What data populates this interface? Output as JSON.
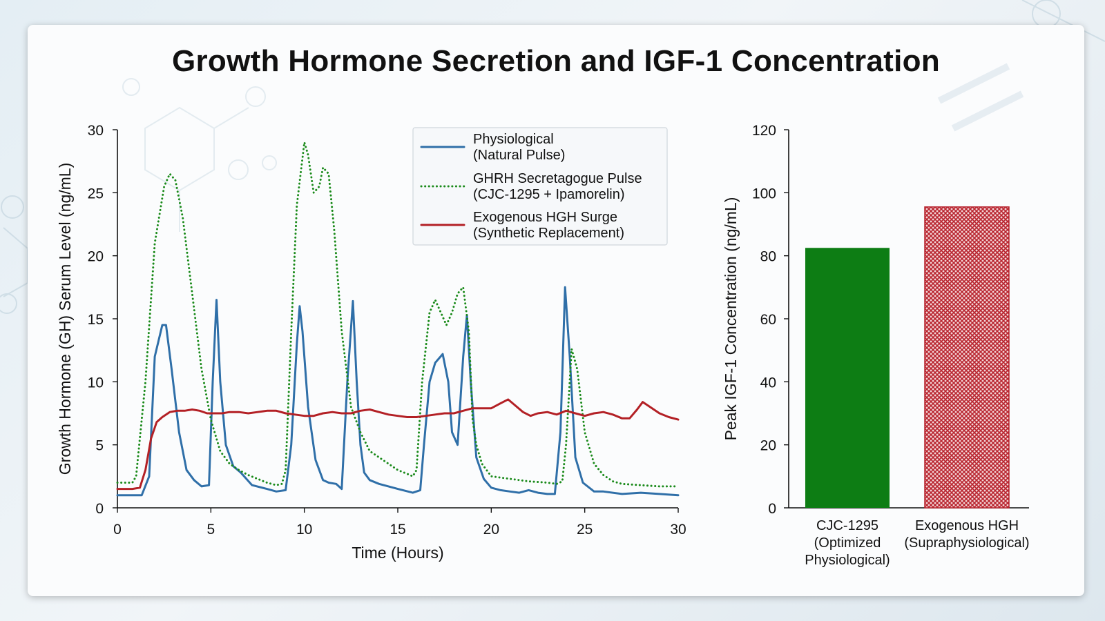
{
  "title": "Growth Hormone Secretion and IGF-1 Concentration",
  "colors": {
    "physio": "#2f6fa8",
    "ghrh": "#1a8a1a",
    "hgh": "#b32025",
    "bar_green": "#0d7d14",
    "bar_red": "#b8232d"
  },
  "chart_data": [
    {
      "type": "line",
      "xlabel": "Time (Hours)",
      "ylabel": "Growth Hormone (GH) Serum Level (ng/mL)",
      "xlim": [
        0,
        30
      ],
      "ylim": [
        0,
        30
      ],
      "xticks": [
        0,
        5,
        10,
        15,
        20,
        25,
        30
      ],
      "yticks": [
        0,
        5,
        10,
        15,
        20,
        25,
        30
      ],
      "grid": false,
      "legend": "top-right",
      "series": [
        {
          "name": "Physiological\n(Natural Pulse)",
          "style": "solid",
          "x": [
            0,
            1.3,
            1.7,
            2,
            2.4,
            2.6,
            2.9,
            3.3,
            3.7,
            4.1,
            4.5,
            4.9,
            5.1,
            5.3,
            5.5,
            5.8,
            6.2,
            6.6,
            7.2,
            8,
            8.5,
            9,
            9.3,
            9.6,
            9.75,
            9.9,
            10.2,
            10.6,
            11,
            11.3,
            11.7,
            12,
            12.3,
            12.6,
            12.8,
            13,
            13.2,
            13.5,
            14,
            14.5,
            15,
            15.8,
            16.2,
            16.4,
            16.7,
            17,
            17.4,
            17.7,
            17.9,
            18.2,
            18.5,
            18.7,
            18.9,
            19.2,
            19.6,
            20,
            20.5,
            21,
            21.5,
            22,
            22.5,
            23,
            23.4,
            23.7,
            23.95,
            24.2,
            24.5,
            24.9,
            25.5,
            26,
            27,
            28,
            29,
            30
          ],
          "y": [
            1,
            1,
            2.5,
            12,
            14.5,
            14.5,
            11,
            6,
            3,
            2.2,
            1.7,
            1.8,
            10,
            16.5,
            10,
            5,
            3.3,
            2.8,
            1.8,
            1.5,
            1.3,
            1.4,
            5,
            13,
            16,
            14,
            8,
            3.8,
            2.2,
            2,
            1.9,
            1.5,
            10,
            16.4,
            10,
            5,
            2.8,
            2.2,
            1.9,
            1.7,
            1.5,
            1.2,
            1.4,
            5,
            10,
            11.5,
            12.2,
            10,
            6,
            5,
            12,
            15.3,
            10,
            4,
            2.3,
            1.6,
            1.4,
            1.3,
            1.2,
            1.4,
            1.2,
            1.1,
            1.1,
            6,
            17.5,
            12,
            4,
            2,
            1.3,
            1.3,
            1.1,
            1.2,
            1.1,
            1
          ],
          "color": "#2f6fa8"
        },
        {
          "name": "GHRH Secretagogue Pulse\n(CJC-1295 + Ipamorelin)",
          "style": "dotted",
          "x": [
            0,
            0.8,
            1,
            1.5,
            2,
            2.5,
            2.8,
            3.1,
            3.5,
            4,
            4.5,
            5,
            5.5,
            6,
            6.5,
            7,
            7.5,
            8,
            8.5,
            8.8,
            9,
            9.3,
            9.6,
            10,
            10.2,
            10.5,
            10.8,
            11,
            11.3,
            11.6,
            12,
            12.5,
            13,
            13.5,
            14,
            14.5,
            15,
            15.5,
            15.8,
            16,
            16.3,
            16.7,
            17,
            17.3,
            17.6,
            17.9,
            18.2,
            18.5,
            18.8,
            19,
            19.2,
            19.5,
            20,
            20.5,
            21,
            22,
            23,
            23.5,
            23.8,
            24,
            24.3,
            24.6,
            25,
            25.5,
            26,
            26.5,
            27,
            28,
            29,
            30
          ],
          "y": [
            2,
            2,
            2.5,
            10,
            21,
            25.5,
            26.5,
            26,
            23,
            17,
            11,
            7,
            4.5,
            3.5,
            3,
            2.6,
            2.3,
            2,
            1.8,
            1.9,
            3,
            14,
            24,
            29,
            28,
            25,
            25.5,
            27,
            26.5,
            22,
            14,
            8,
            6,
            4.5,
            4,
            3.5,
            3,
            2.7,
            2.5,
            3,
            10,
            15.5,
            16.5,
            15.5,
            14.5,
            15.5,
            17,
            17.5,
            14,
            7,
            5,
            3.5,
            2.5,
            2.4,
            2.3,
            2.1,
            2,
            1.9,
            2.1,
            5,
            12.6,
            11,
            6,
            3.5,
            2.6,
            2.1,
            1.9,
            1.8,
            1.7,
            1.7
          ],
          "color": "#1a8a1a"
        },
        {
          "name": "Exogenous HGH Surge\n(Synthetic Replacement)",
          "style": "solid",
          "x": [
            0,
            0.8,
            1.2,
            1.5,
            1.8,
            2.1,
            2.4,
            2.8,
            3.2,
            3.6,
            4,
            4.4,
            4.8,
            5.2,
            5.6,
            6,
            6.5,
            7,
            7.5,
            8,
            8.5,
            9,
            9.5,
            10,
            10.5,
            11,
            11.5,
            12,
            12.5,
            13,
            13.5,
            14,
            14.5,
            15,
            15.5,
            16,
            16.5,
            17,
            17.5,
            18,
            18.5,
            19,
            19.5,
            20,
            20.5,
            20.9,
            21.3,
            21.7,
            22.1,
            22.5,
            23,
            23.5,
            24,
            24.5,
            25,
            25.5,
            26,
            26.5,
            27,
            27.4,
            27.8,
            28.1,
            28.5,
            29,
            29.5,
            30
          ],
          "y": [
            1.5,
            1.5,
            1.6,
            3,
            5.5,
            6.8,
            7.2,
            7.6,
            7.7,
            7.7,
            7.8,
            7.7,
            7.5,
            7.5,
            7.5,
            7.6,
            7.6,
            7.5,
            7.6,
            7.7,
            7.7,
            7.5,
            7.4,
            7.3,
            7.3,
            7.5,
            7.6,
            7.5,
            7.5,
            7.7,
            7.8,
            7.6,
            7.4,
            7.3,
            7.2,
            7.2,
            7.3,
            7.4,
            7.5,
            7.5,
            7.7,
            7.9,
            7.9,
            7.9,
            8.3,
            8.6,
            8.1,
            7.6,
            7.3,
            7.5,
            7.6,
            7.4,
            7.7,
            7.5,
            7.3,
            7.5,
            7.6,
            7.4,
            7.1,
            7.1,
            7.8,
            8.4,
            8,
            7.5,
            7.2,
            7
          ],
          "color": "#b32025"
        }
      ]
    },
    {
      "type": "bar",
      "categories": [
        "CJC-1295\n(Optimized\nPhysiological)",
        "Exogenous HGH\n(Supraphysiological)"
      ],
      "values": [
        82.5,
        95.5
      ],
      "ylabel": "Peak IGF-1 Concentration (ng/mL)",
      "ylim": [
        0,
        120
      ],
      "yticks": [
        0,
        20,
        40,
        60,
        80,
        100,
        120
      ],
      "grid": false,
      "bar_fills": [
        "solid",
        "crosshatch"
      ],
      "colors": [
        "#0d7d14",
        "#b8232d"
      ]
    }
  ]
}
